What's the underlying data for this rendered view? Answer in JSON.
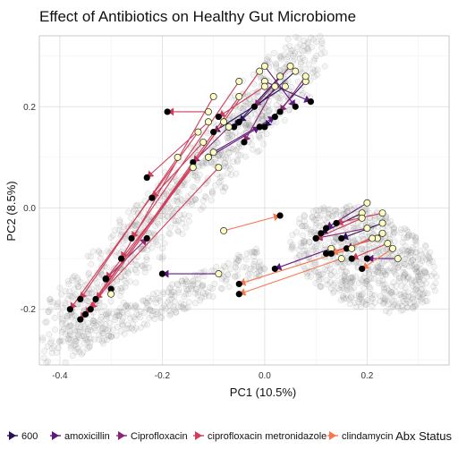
{
  "chart_data": {
    "type": "scatter",
    "title": "Effect of Antibiotics on Healthy Gut Microbiome",
    "xlabel": "PC1 (10.5%)",
    "ylabel": "PC2 (8.5%)",
    "xlim": [
      -0.44,
      0.36
    ],
    "ylim": [
      -0.31,
      0.34
    ],
    "x_ticks": [
      -0.4,
      -0.2,
      0.0,
      0.2
    ],
    "x_tick_labels": [
      "-0.4",
      "-0.2",
      "0.0",
      "0.2"
    ],
    "y_ticks": [
      -0.2,
      0.0,
      0.2
    ],
    "y_tick_labels": [
      "-0.2",
      "0.0",
      "0.2"
    ],
    "grid": true,
    "legend_position": "bottom",
    "legend": {
      "title": "Abx Status",
      "entries": [
        {
          "label": "600",
          "color": "#2a0f59"
        },
        {
          "label": "amoxicillin",
          "color": "#5f1780"
        },
        {
          "label": "Ciprofloxacin",
          "color": "#8a2475"
        },
        {
          "label": "ciprofloxacin metronidazole",
          "color": "#d13c5a"
        },
        {
          "label": "clindamycin",
          "color": "#f5784e"
        }
      ]
    },
    "start_marker_color": "#000000",
    "end_marker_color": "#fcfdbf",
    "background_clusters": [
      {
        "x_range": [
          -0.42,
          0.1
        ],
        "y_range": [
          -0.26,
          0.32
        ],
        "count": 900,
        "shape": "band"
      },
      {
        "x_range": [
          -0.38,
          0.0
        ],
        "y_range": [
          -0.27,
          -0.1
        ],
        "count": 300,
        "shape": "band_low"
      },
      {
        "x_range": [
          0.05,
          0.34
        ],
        "y_range": [
          -0.2,
          0.0
        ],
        "count": 700,
        "shape": "blob"
      }
    ],
    "series": [
      {
        "name": "600",
        "color": "#2a0f59",
        "segments": [
          {
            "x0": -0.06,
            "y0": 0.16,
            "x1": 0.03,
            "y1": 0.26
          },
          {
            "x0": -0.1,
            "y0": 0.15,
            "x1": 0.04,
            "y1": 0.24
          },
          {
            "x0": -0.05,
            "y0": 0.17,
            "x1": 0.06,
            "y1": 0.27
          },
          {
            "x0": 0.0,
            "y0": 0.16,
            "x1": 0.08,
            "y1": 0.25
          },
          {
            "x0": 0.11,
            "y0": -0.05,
            "x1": 0.19,
            "y1": -0.01
          },
          {
            "x0": 0.15,
            "y0": -0.06,
            "x1": 0.23,
            "y1": -0.03
          }
        ]
      },
      {
        "name": "amoxicillin",
        "color": "#5f1780",
        "segments": [
          {
            "x0": -0.2,
            "y0": -0.13,
            "x1": -0.09,
            "y1": -0.13
          },
          {
            "x0": 0.02,
            "y0": 0.18,
            "x1": -0.1,
            "y1": 0.11
          },
          {
            "x0": -0.01,
            "y0": 0.16,
            "x1": -0.11,
            "y1": 0.1
          },
          {
            "x0": 0.06,
            "y0": 0.2,
            "x1": 0.0,
            "y1": 0.28
          },
          {
            "x0": 0.09,
            "y0": 0.21,
            "x1": 0.0,
            "y1": 0.25
          },
          {
            "x0": 0.12,
            "y0": -0.04,
            "x1": 0.2,
            "y1": 0.01
          },
          {
            "x0": 0.2,
            "y0": -0.1,
            "x1": 0.26,
            "y1": -0.1
          },
          {
            "x0": 0.02,
            "y0": -0.12,
            "x1": 0.13,
            "y1": -0.08
          }
        ]
      },
      {
        "name": "Ciprofloxacin",
        "color": "#8a2475",
        "segments": [
          {
            "x0": -0.23,
            "y0": -0.06,
            "x1": -0.31,
            "y1": -0.14
          },
          {
            "x0": -0.14,
            "y0": 0.09,
            "x1": -0.07,
            "y1": 0.16
          },
          {
            "x0": -0.04,
            "y0": 0.13,
            "x1": 0.02,
            "y1": 0.24
          },
          {
            "x0": -0.02,
            "y0": 0.2,
            "x1": 0.05,
            "y1": 0.28
          },
          {
            "x0": 0.03,
            "y0": 0.19,
            "x1": 0.08,
            "y1": 0.26
          },
          {
            "x0": 0.1,
            "y0": -0.06,
            "x1": 0.2,
            "y1": -0.04
          },
          {
            "x0": 0.16,
            "y0": -0.08,
            "x1": 0.23,
            "y1": -0.05
          }
        ]
      },
      {
        "name": "ciprofloxacin metronidazole",
        "color": "#d13c5a",
        "segments": [
          {
            "x0": -0.19,
            "y0": 0.19,
            "x1": -0.11,
            "y1": 0.19
          },
          {
            "x0": -0.09,
            "y0": 0.18,
            "x1": 0.0,
            "y1": 0.24
          },
          {
            "x0": -0.23,
            "y0": 0.06,
            "x1": -0.11,
            "y1": 0.17
          },
          {
            "x0": -0.22,
            "y0": 0.02,
            "x1": -0.12,
            "y1": 0.13
          },
          {
            "x0": -0.36,
            "y0": -0.22,
            "x1": -0.08,
            "y1": 0.17
          },
          {
            "x0": -0.35,
            "y0": -0.21,
            "x1": -0.05,
            "y1": 0.22
          },
          {
            "x0": -0.34,
            "y0": -0.2,
            "x1": -0.01,
            "y1": 0.27
          },
          {
            "x0": -0.38,
            "y0": -0.2,
            "x1": -0.13,
            "y1": 0.15
          },
          {
            "x0": -0.33,
            "y0": -0.18,
            "x1": -0.09,
            "y1": 0.08
          },
          {
            "x0": -0.31,
            "y0": -0.14,
            "x1": -0.14,
            "y1": 0.08
          },
          {
            "x0": -0.28,
            "y0": -0.1,
            "x1": -0.1,
            "y1": 0.22
          },
          {
            "x0": -0.26,
            "y0": -0.06,
            "x1": -0.05,
            "y1": 0.25
          },
          {
            "x0": -0.36,
            "y0": -0.18,
            "x1": -0.17,
            "y1": 0.1
          },
          {
            "x0": -0.3,
            "y0": -0.16,
            "x1": -0.3,
            "y1": -0.17
          },
          {
            "x0": 0.1,
            "y0": -0.06,
            "x1": 0.19,
            "y1": -0.02
          },
          {
            "x0": 0.12,
            "y0": -0.09,
            "x1": 0.22,
            "y1": -0.06
          },
          {
            "x0": 0.14,
            "y0": -0.03,
            "x1": 0.23,
            "y1": -0.01
          },
          {
            "x0": 0.17,
            "y0": -0.1,
            "x1": 0.24,
            "y1": -0.07
          }
        ]
      },
      {
        "name": "clindamycin",
        "color": "#f5784e",
        "segments": [
          {
            "x0": 0.03,
            "y0": -0.015,
            "x1": -0.08,
            "y1": -0.045
          },
          {
            "x0": -0.05,
            "y0": -0.17,
            "x1": 0.15,
            "y1": -0.1
          },
          {
            "x0": -0.05,
            "y0": -0.15,
            "x1": 0.17,
            "y1": -0.08
          },
          {
            "x0": 0.13,
            "y0": -0.09,
            "x1": 0.21,
            "y1": -0.06
          },
          {
            "x0": 0.19,
            "y0": -0.12,
            "x1": 0.25,
            "y1": -0.08
          }
        ]
      }
    ]
  }
}
